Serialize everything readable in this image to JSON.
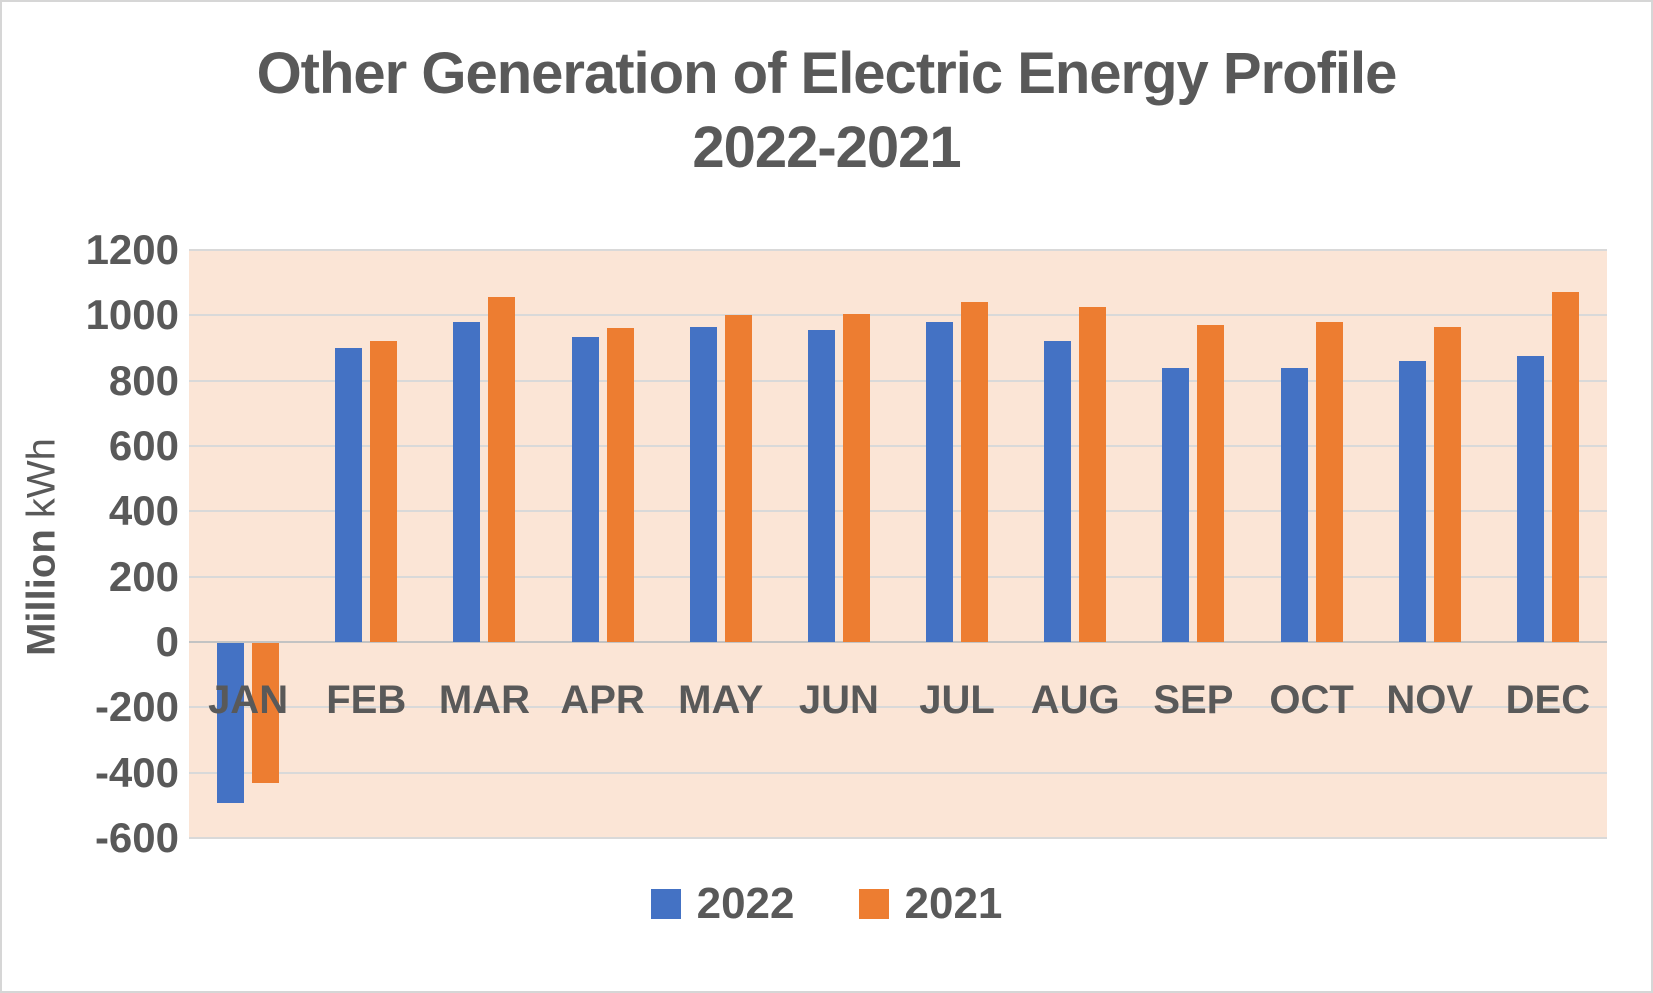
{
  "chart_data": {
    "type": "bar",
    "title_line1": "Other Generation of Electric Energy Profile",
    "title_line2": "2022-2021",
    "ylabel_bold": "Million",
    "ylabel_unit": "kWh",
    "categories": [
      "JAN",
      "FEB",
      "MAR",
      "APR",
      "MAY",
      "JUN",
      "JUL",
      "AUG",
      "SEP",
      "OCT",
      "NOV",
      "DEC"
    ],
    "series": [
      {
        "name": "2022",
        "color": "#4472C4",
        "values": [
          -490,
          900,
          980,
          935,
          965,
          955,
          980,
          920,
          840,
          840,
          860,
          875
        ]
      },
      {
        "name": "2021",
        "color": "#ED7D31",
        "values": [
          -430,
          920,
          1055,
          960,
          1000,
          1005,
          1040,
          1025,
          970,
          980,
          965,
          1070
        ]
      }
    ],
    "y_ticks": [
      1200,
      1000,
      800,
      600,
      400,
      200,
      0,
      -200,
      -400,
      -600
    ],
    "ylim": [
      -600,
      1200
    ],
    "legend_position": "bottom",
    "grid": true,
    "colors": {
      "plot_background": "#FBE5D6",
      "gridline": "#D9D9D9",
      "zero_axis_line": "#C3C3C3",
      "text": "#595959",
      "canvas_border": "#D6D6D6"
    }
  }
}
